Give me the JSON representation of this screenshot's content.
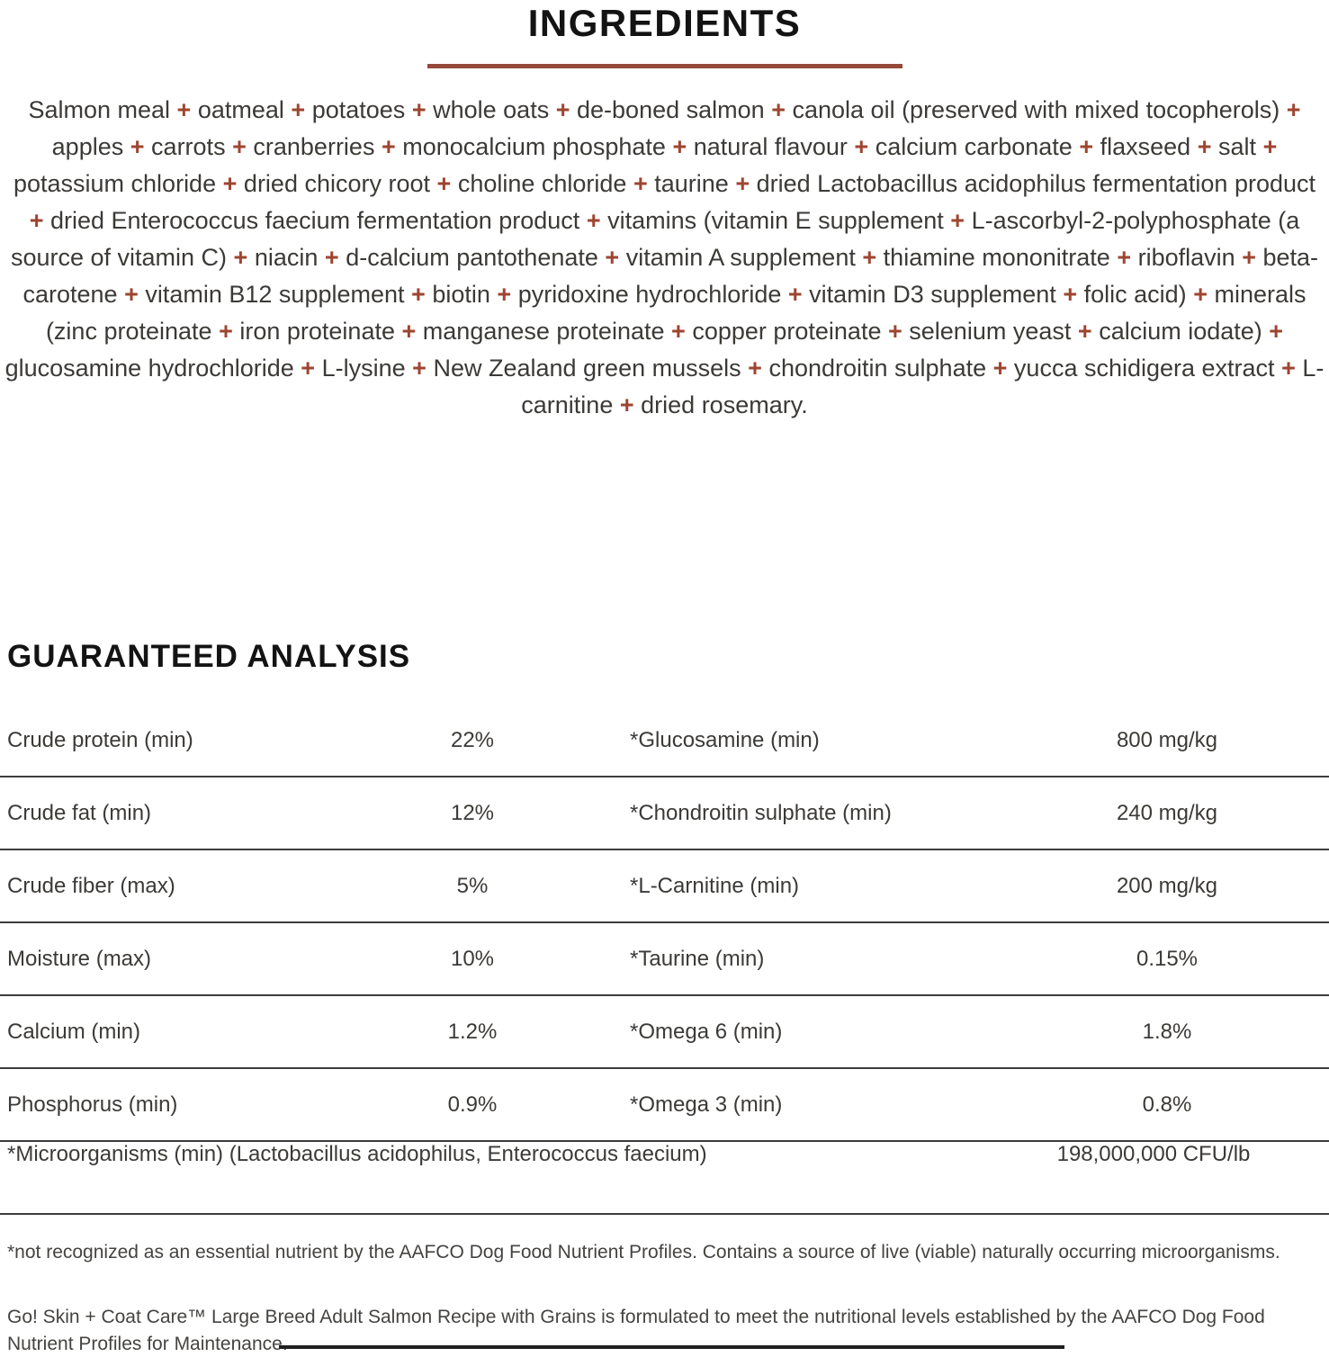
{
  "colors": {
    "accent": "#9e4530",
    "rule": "#96493a",
    "table_rule": "#3d3d3d"
  },
  "ingredients": {
    "title": "INGREDIENTS",
    "items": [
      "Salmon meal",
      "oatmeal",
      "potatoes",
      "whole oats",
      "de-boned salmon",
      "canola oil (preserved with mixed tocopherols)",
      "apples",
      "carrots",
      "cranberries",
      "monocalcium phosphate",
      "natural flavour",
      "calcium carbonate",
      "flaxseed",
      "salt",
      "potassium chloride",
      "dried chicory root",
      "choline chloride",
      "taurine",
      "dried Lactobacillus acidophilus fermentation product",
      "dried Enterococcus faecium fermentation product",
      "vitamins (vitamin E supplement",
      "L-ascorbyl-2-polyphosphate (a source of vitamin C)",
      "niacin",
      "d-calcium pantothenate",
      "vitamin A supplement",
      "thiamine mononitrate",
      "riboflavin",
      "beta-carotene",
      "vitamin B12 supplement",
      "biotin",
      "pyridoxine hydrochloride",
      "vitamin D3 supplement",
      "folic acid)",
      "minerals (zinc proteinate",
      "iron proteinate",
      "manganese proteinate",
      "copper proteinate",
      "selenium yeast",
      "calcium iodate)",
      "glucosamine hydrochloride",
      "L-lysine",
      "New Zealand green mussels",
      "chondroitin sulphate",
      "yucca schidigera extract",
      "L-carnitine",
      "dried rosemary."
    ]
  },
  "guaranteed_analysis": {
    "title": "GUARANTEED ANALYSIS",
    "rows": [
      {
        "left_label": "Crude protein (min)",
        "left_value": "22%",
        "right_label": "*Glucosamine (min)",
        "right_value": "800 mg/kg"
      },
      {
        "left_label": "Crude fat (min)",
        "left_value": "12%",
        "right_label": "*Chondroitin sulphate (min)",
        "right_value": "240 mg/kg"
      },
      {
        "left_label": "Crude fiber (max)",
        "left_value": "5%",
        "right_label": "*L-Carnitine (min)",
        "right_value": "200 mg/kg"
      },
      {
        "left_label": "Moisture (max)",
        "left_value": "10%",
        "right_label": "*Taurine (min)",
        "right_value": "0.15%"
      },
      {
        "left_label": "Calcium (min)",
        "left_value": "1.2%",
        "right_label": "*Omega 6 (min)",
        "right_value": "1.8%"
      },
      {
        "left_label": "Phosphorus (min)",
        "left_value": "0.9%",
        "right_label": "*Omega 3 (min)",
        "right_value": "0.8%"
      }
    ],
    "full_row": {
      "label": "*Microorganisms (min) (Lactobacillus acidophilus, Enterococcus faecium)",
      "value": "198,000,000 CFU/lb"
    }
  },
  "footnote": "*not recognized as an essential nutrient by the AAFCO Dog Food Nutrient Profiles. Contains a source of live (viable) naturally occurring microorganisms.",
  "footer": "Go! Skin + Coat Care™ Large Breed Adult Salmon Recipe with Grains is formulated to meet the nutritional levels established by the AAFCO Dog Food Nutrient Profiles for Maintenance."
}
